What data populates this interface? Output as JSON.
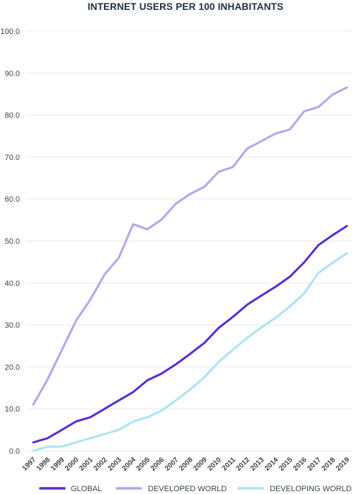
{
  "chart_data": {
    "type": "line",
    "title": "INTERNET USERS PER 100 INHABITANTS",
    "xlabel": "",
    "ylabel": "",
    "ylim": [
      0,
      100
    ],
    "yticks": [
      "0.0",
      "10.0",
      "20.0",
      "30.0",
      "40.0",
      "50.0",
      "60.0",
      "70.0",
      "80.0",
      "90.0",
      "100.0"
    ],
    "grid": true,
    "legend_position": "bottom",
    "categories": [
      "1997",
      "1998",
      "1999",
      "2000",
      "2001",
      "2002",
      "2003",
      "2004",
      "2005",
      "2006",
      "2007",
      "2008",
      "2009",
      "2010",
      "2011",
      "2012",
      "2013",
      "2014",
      "2015",
      "2016",
      "2017",
      "2018",
      "2019"
    ],
    "series": [
      {
        "name": "GLOBAL",
        "color": "#5a2bd1",
        "values": [
          2.0,
          3.0,
          5.0,
          7.0,
          8.0,
          10.0,
          12.0,
          14.0,
          16.8,
          18.4,
          20.6,
          23.1,
          25.7,
          29.3,
          31.9,
          34.8,
          37.0,
          39.1,
          41.5,
          44.9,
          49.0,
          51.4,
          53.6
        ]
      },
      {
        "name": "DEVELOPED WORLD",
        "color": "#b8a3ee",
        "values": [
          11.0,
          17.0,
          24.0,
          31.0,
          36.0,
          42.0,
          46.0,
          54.0,
          52.8,
          55.1,
          58.9,
          61.2,
          62.9,
          66.5,
          67.6,
          72.0,
          73.8,
          75.6,
          76.6,
          80.9,
          81.9,
          84.9,
          86.6
        ]
      },
      {
        "name": "DEVELOPING WORLD",
        "color": "#a8e4f4",
        "values": [
          0.0,
          1.0,
          1.0,
          2.0,
          3.0,
          4.0,
          5.0,
          7.0,
          8.0,
          9.6,
          12.0,
          14.6,
          17.5,
          21.2,
          24.1,
          26.9,
          29.4,
          31.7,
          34.4,
          37.5,
          42.4,
          44.8,
          47.1
        ]
      }
    ]
  }
}
